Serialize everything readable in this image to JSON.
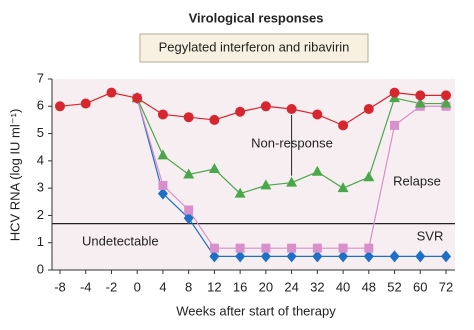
{
  "chart_data": {
    "type": "line",
    "title": "Virological responses",
    "subtitle": "Pegylated interferon and ribavirin",
    "x_label": "Weeks after start of therapy",
    "y_label": "HCV RNA (log IU ml⁻¹)",
    "categories": [
      "-8",
      "-4",
      "-2",
      "0",
      "4",
      "8",
      "12",
      "16",
      "20",
      "24",
      "32",
      "40",
      "48",
      "52",
      "60",
      "72"
    ],
    "ylim": [
      0,
      7
    ],
    "yticks": [
      0,
      1,
      2,
      3,
      4,
      5,
      6,
      7
    ],
    "detection_limit": 1.7,
    "series": [
      {
        "color": "#d7262e",
        "marker": "circle",
        "values": [
          6.0,
          6.1,
          6.5,
          6.3,
          5.7,
          5.6,
          5.5,
          5.8,
          6.0,
          5.9,
          5.7,
          5.3,
          5.9,
          6.5,
          6.4,
          6.4
        ]
      },
      {
        "color": "#4aa84a",
        "marker": "triangle",
        "values": [
          null,
          null,
          null,
          6.3,
          4.2,
          3.5,
          3.7,
          2.8,
          3.1,
          3.2,
          3.6,
          3.0,
          3.4,
          6.3,
          6.1,
          6.1
        ]
      },
      {
        "color": "#d98fc9",
        "marker": "square",
        "values": [
          null,
          null,
          null,
          6.3,
          3.1,
          2.2,
          0.8,
          0.8,
          0.8,
          0.8,
          0.8,
          0.8,
          0.8,
          5.3,
          6.0,
          6.0
        ]
      },
      {
        "color": "#1e6fc8",
        "marker": "diamond",
        "values": [
          null,
          null,
          null,
          6.3,
          2.8,
          1.9,
          0.5,
          0.5,
          0.5,
          0.5,
          0.5,
          0.5,
          0.5,
          0.5,
          0.5,
          0.5
        ]
      }
    ],
    "annotations": [
      "Non-response",
      "Relapse",
      "Undetectable",
      "SVR"
    ]
  }
}
